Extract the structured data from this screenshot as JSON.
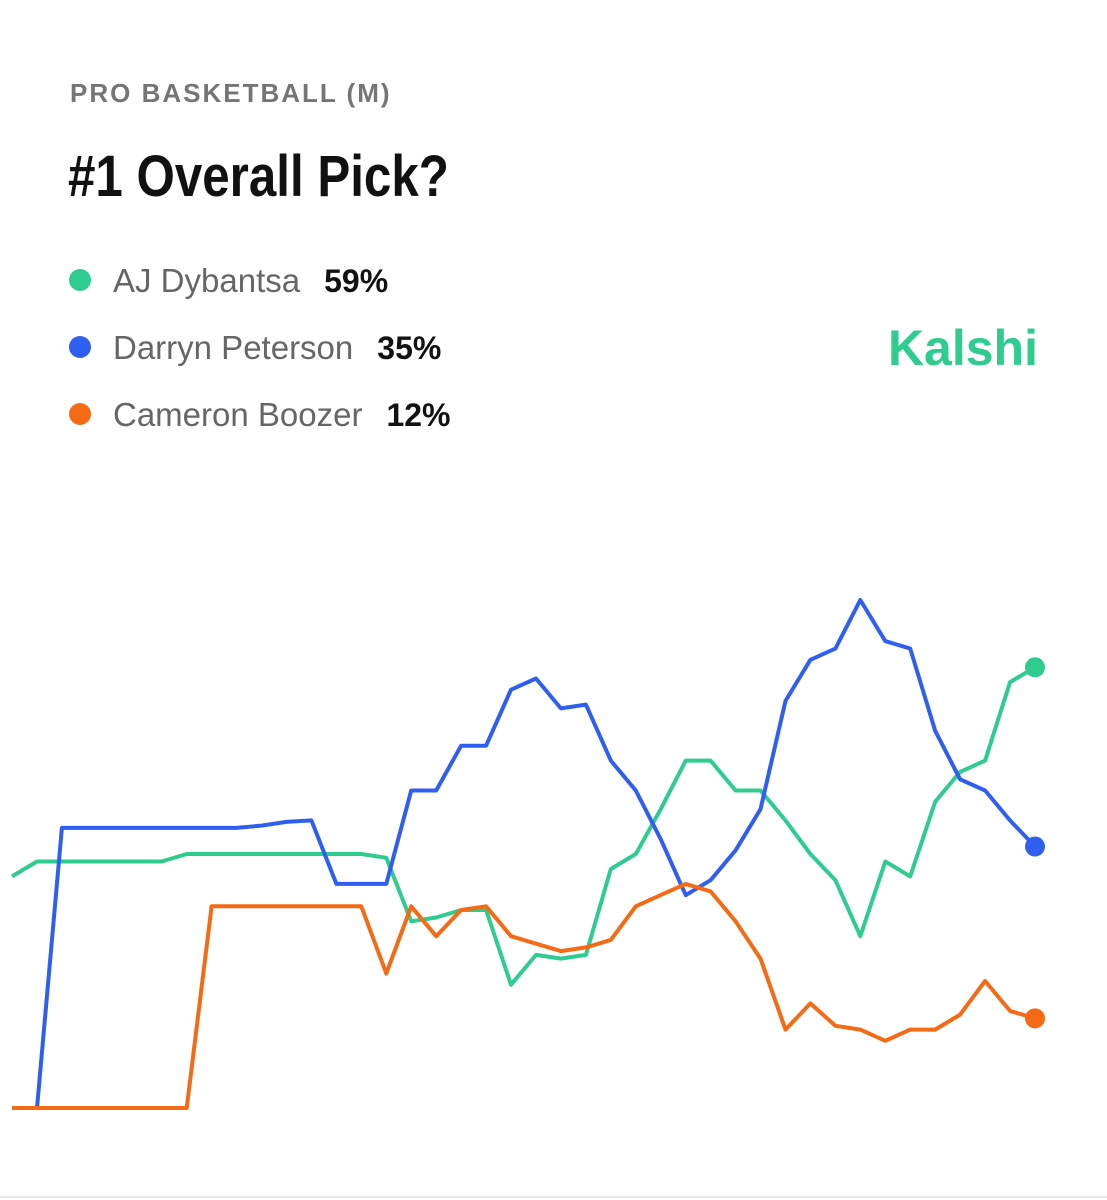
{
  "chart_data": {
    "type": "line",
    "supertitle": "PRO BASKETBALL (M)",
    "title": "#1 Overall Pick?",
    "brand": "Kalshi",
    "categories": [
      null,
      null,
      null,
      null,
      null,
      null,
      null,
      null,
      null,
      null,
      null,
      null,
      null,
      null,
      null,
      null,
      null,
      null,
      null,
      null,
      null,
      null,
      null,
      null,
      null,
      null,
      null,
      null,
      null,
      null,
      null,
      null,
      null,
      null,
      null,
      null,
      null,
      null,
      null,
      null,
      null,
      null
    ],
    "series": [
      {
        "name": "AJ Dybantsa",
        "color": "#2ecc8f",
        "legend_value": {
          "value": 59,
          "label": "59%"
        },
        "values": [
          31,
          33,
          33,
          33,
          33,
          33,
          33,
          34,
          34,
          34,
          34,
          34,
          34,
          34,
          34,
          33.5,
          25,
          25.5,
          26.5,
          26.5,
          16.5,
          20.5,
          20,
          20.5,
          32,
          34,
          40,
          46.5,
          46.5,
          42.5,
          42.5,
          38.5,
          34,
          30.5,
          23,
          33,
          31,
          41,
          45,
          46.5,
          57,
          59
        ]
      },
      {
        "name": "Darryn Peterson",
        "color": "#2f5ff0",
        "legend_value": {
          "value": 35,
          "label": "35%"
        },
        "values": [
          0,
          0,
          37.5,
          37.5,
          37.5,
          37.5,
          37.5,
          37.5,
          37.5,
          37.5,
          37.8,
          38.3,
          38.5,
          30,
          30,
          30,
          42.5,
          42.5,
          48.5,
          48.5,
          56,
          57.5,
          53.5,
          54,
          46.5,
          42.5,
          36,
          28.5,
          30.5,
          34.5,
          40,
          54.5,
          60,
          61.5,
          68,
          62.5,
          61.5,
          50.5,
          44,
          42.5,
          38.5,
          35
        ]
      },
      {
        "name": "Cameron Boozer",
        "color": "#f56a14",
        "legend_value": {
          "value": 12,
          "label": "12%"
        },
        "values": [
          0,
          0,
          0,
          0,
          0,
          0,
          0,
          0,
          27,
          27,
          27,
          27,
          27,
          27,
          27,
          18,
          27,
          23,
          26.5,
          27,
          23,
          22,
          21,
          21.5,
          22.5,
          27,
          28.5,
          30,
          29,
          25,
          20,
          10.5,
          14,
          11,
          10.5,
          9,
          10.5,
          10.5,
          12.5,
          17,
          13,
          12
        ]
      }
    ]
  }
}
